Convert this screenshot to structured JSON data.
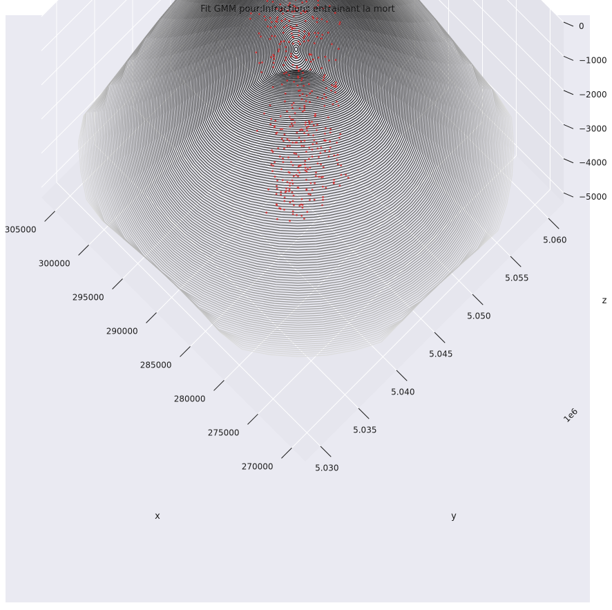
{
  "chart_data": {
    "type": "scatter",
    "subtype": "3d-surface-contour-with-scatter",
    "title": "Fit GMM pour:Infractions entrainant la mort",
    "xlabel": "x",
    "ylabel": "y",
    "zlabel": "z",
    "y_offset_label": "1e6",
    "x_ticks": [
      270000,
      275000,
      280000,
      285000,
      290000,
      295000,
      300000,
      305000
    ],
    "y_ticks": [
      5.03,
      5.035,
      5.04,
      5.045,
      5.05,
      5.055,
      5.06
    ],
    "z_ticks": [
      0,
      1000,
      2000,
      3000,
      4000,
      5000
    ],
    "xlim": [
      268000,
      307000
    ],
    "ylim": [
      5.028,
      5.062
    ],
    "zlim": [
      -5300,
      0
    ],
    "grid": true,
    "legend": "none",
    "surface_color": "#1a1a1a",
    "surface_highlight": "#e5e5e5",
    "scatter_color": "#d62728",
    "pane_color": "#eaeaf2",
    "grid_color": "#ffffff",
    "gmm_peaks": [
      {
        "x": 292000,
        "y": 5.048,
        "z": -900
      },
      {
        "x": 286000,
        "y": 5.043,
        "z": -1200
      }
    ]
  }
}
